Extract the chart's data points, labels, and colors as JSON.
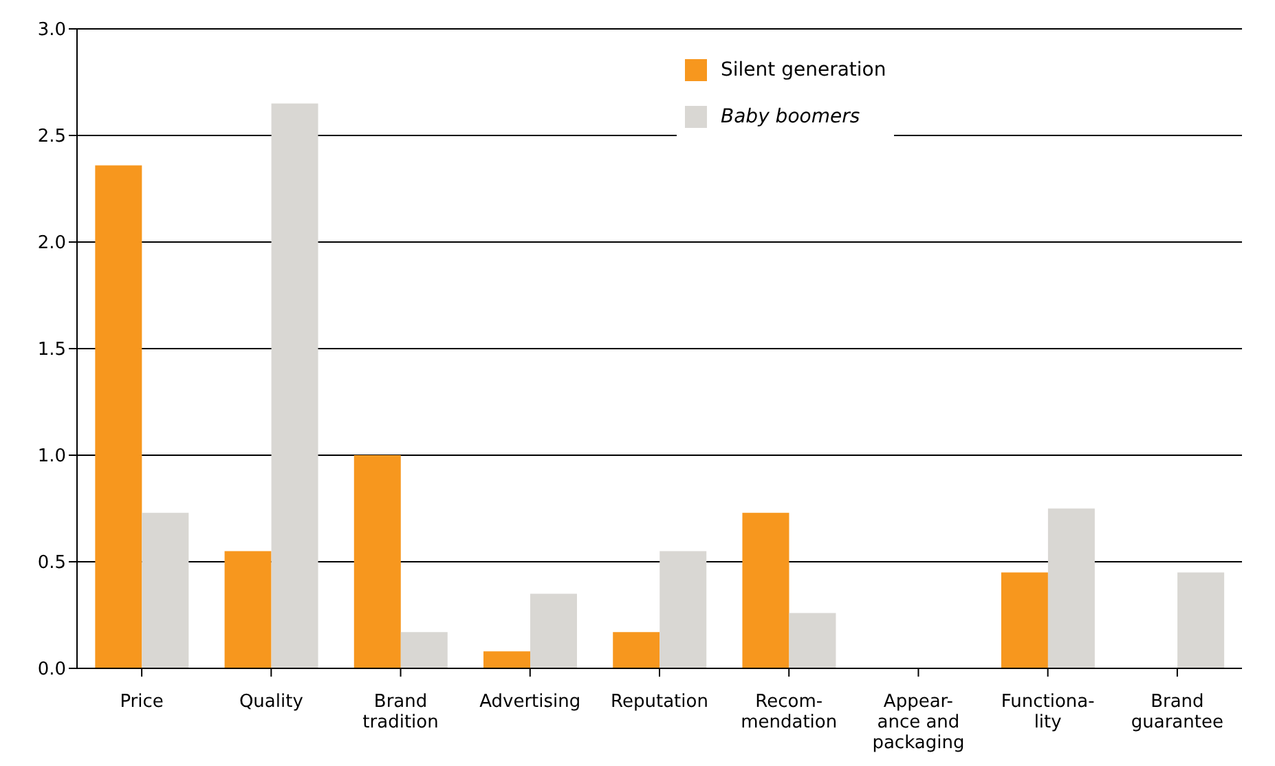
{
  "chart_data": {
    "type": "bar",
    "categories": [
      "Price",
      "Quality",
      "Brand\ntradition",
      "Advertising",
      "Reputation",
      "Recom-\nmendation",
      "Appear-\nance and\npackaging",
      "Functiona-\nlity",
      "Brand\nguarantee"
    ],
    "series": [
      {
        "name": "Silent generation",
        "color": "#f7971e",
        "values": [
          2.36,
          0.55,
          1.0,
          0.08,
          0.17,
          0.73,
          0,
          0.45,
          0
        ]
      },
      {
        "name": "Baby boomers",
        "color": "#d9d7d3",
        "values": [
          0.73,
          2.65,
          0.17,
          0.35,
          0.55,
          0.26,
          0,
          0.75,
          0.45
        ]
      }
    ],
    "ylim": [
      0,
      3
    ],
    "yticks": [
      {
        "value": 0,
        "label": "0.0"
      },
      {
        "value": 0.5,
        "label": "0.5"
      },
      {
        "value": 1,
        "label": "1.0"
      },
      {
        "value": 1.5,
        "label": "1.5"
      },
      {
        "value": 2,
        "label": "2.0"
      },
      {
        "value": 2.5,
        "label": "2.5"
      },
      {
        "value": 3,
        "label": "3.0"
      }
    ],
    "grid": "y",
    "legend": "top"
  }
}
